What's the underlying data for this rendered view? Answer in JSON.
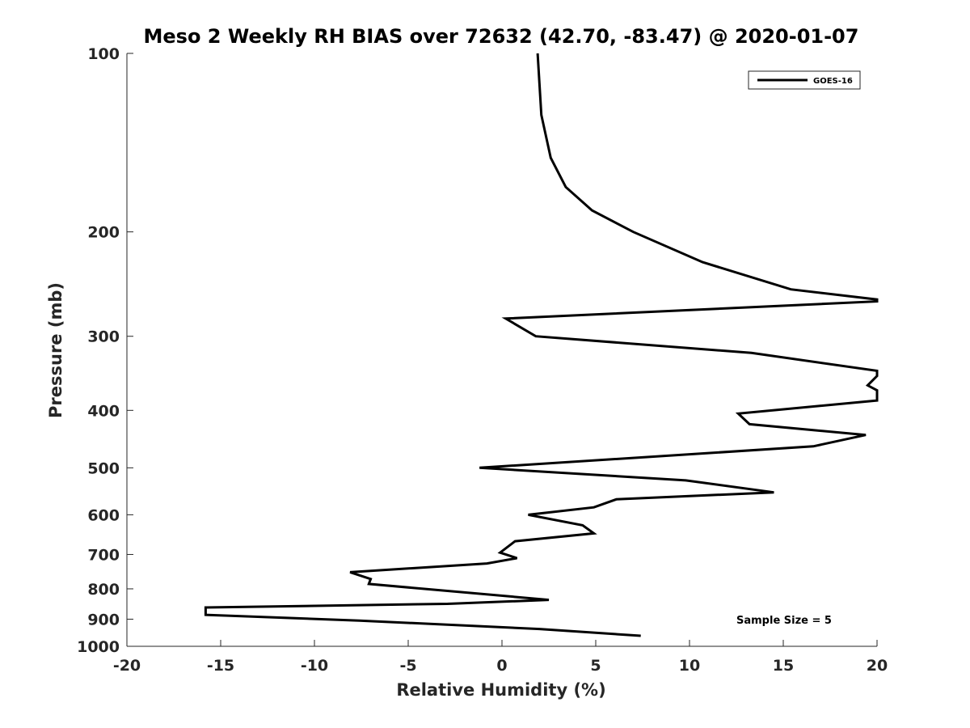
{
  "chart_data": {
    "type": "line",
    "title": "Meso 2 Weekly RH BIAS over 72632 (42.70, -83.47) @ 2020-01-07",
    "xlabel": "Relative Humidity (%)",
    "ylabel": "Pressure (mb)",
    "xlim": [
      -20,
      20
    ],
    "ylim": [
      100,
      1000
    ],
    "y_scale": "log",
    "y_reversed": true,
    "grid": false,
    "legend_position": "top-right",
    "x_ticks": [
      -20,
      -15,
      -10,
      -5,
      0,
      5,
      10,
      15,
      20
    ],
    "x_tick_labels": [
      "-20",
      "-15",
      "-10",
      "-5",
      "0",
      "5",
      "10",
      "15",
      "20"
    ],
    "y_ticks": [
      100,
      200,
      300,
      400,
      500,
      600,
      700,
      800,
      900,
      1000
    ],
    "y_tick_labels": [
      "100",
      "200",
      "300",
      "400",
      "500",
      "600",
      "700",
      "800",
      "900",
      "1000"
    ],
    "series": [
      {
        "name": "GOES-16",
        "color": "#000000",
        "points": [
          [
            1.9,
            100
          ],
          [
            2.1,
            127
          ],
          [
            2.6,
            150
          ],
          [
            3.4,
            168
          ],
          [
            4.8,
            184
          ],
          [
            7.0,
            200
          ],
          [
            10.7,
            225
          ],
          [
            15.4,
            250
          ],
          [
            20.0,
            260
          ],
          [
            20.0,
            262
          ],
          [
            0.2,
            280
          ],
          [
            1.8,
            300
          ],
          [
            13.3,
            320
          ],
          [
            20.0,
            343
          ],
          [
            20.0,
            350
          ],
          [
            19.5,
            363
          ],
          [
            20.0,
            370
          ],
          [
            20.0,
            378
          ],
          [
            20.0,
            385
          ],
          [
            12.6,
            405
          ],
          [
            13.2,
            422
          ],
          [
            19.4,
            440
          ],
          [
            16.6,
            460
          ],
          [
            -1.2,
            500
          ],
          [
            9.8,
            525
          ],
          [
            14.5,
            550
          ],
          [
            6.1,
            565
          ],
          [
            4.9,
            583
          ],
          [
            1.4,
            600
          ],
          [
            4.3,
            625
          ],
          [
            4.9,
            645
          ],
          [
            0.7,
            665
          ],
          [
            -0.1,
            695
          ],
          [
            0.8,
            710
          ],
          [
            -0.8,
            725
          ],
          [
            -8.1,
            750
          ],
          [
            -7.0,
            770
          ],
          [
            -7.1,
            785
          ],
          [
            2.5,
            835
          ],
          [
            -2.9,
            848
          ],
          [
            -15.8,
            860
          ],
          [
            -15.8,
            885
          ],
          [
            -7.6,
            905
          ],
          [
            2.0,
            935
          ],
          [
            7.4,
            960
          ]
        ]
      }
    ],
    "legend": [
      {
        "label": "GOES-16",
        "color": "#000000"
      }
    ],
    "annotations": [
      {
        "text": "Sample Size = 5"
      }
    ]
  }
}
